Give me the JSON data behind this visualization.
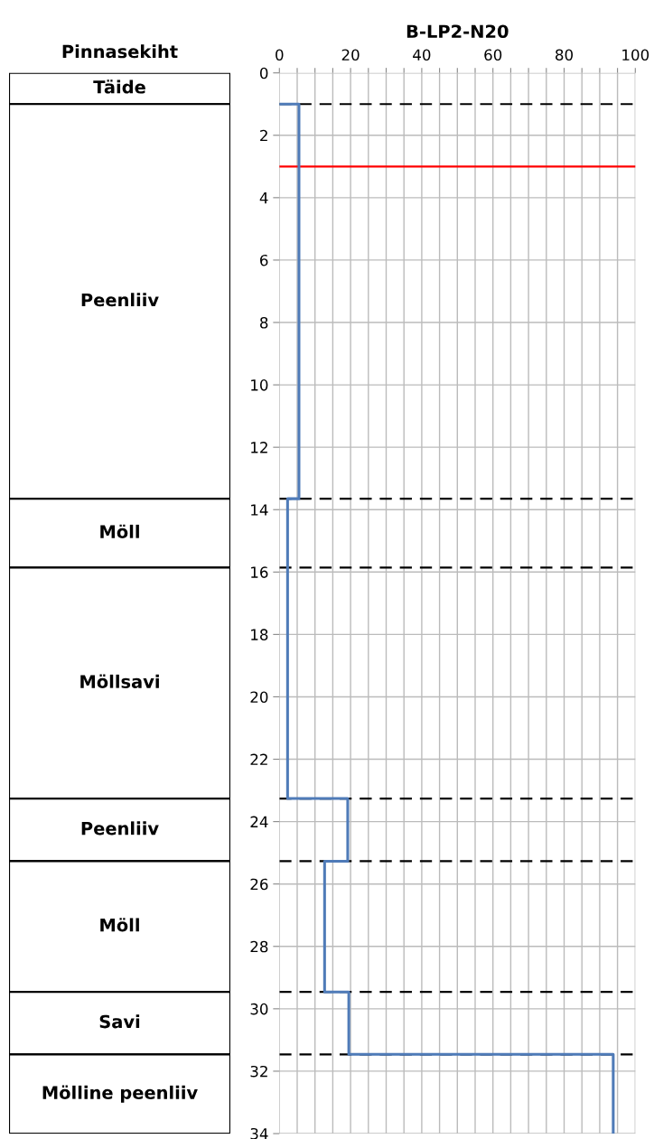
{
  "chart_data": [
    {
      "type": "bar",
      "title": "Pinnasekiht",
      "stacked": true,
      "categories": [
        null
      ],
      "ylim": [
        34,
        0
      ],
      "tick_labels": false,
      "series": [
        {
          "name": "Täide",
          "color": "#ffffff",
          "values": [
            1
          ]
        },
        {
          "name": "Peenliiv",
          "color": "#ffffff",
          "values": [
            12.65
          ]
        },
        {
          "name": "Möll",
          "color": "#ffffff",
          "values": [
            2.21
          ]
        },
        {
          "name": "Möllsavi",
          "color": "#ffffff",
          "values": [
            7.4
          ]
        },
        {
          "name": "Peenliiv",
          "color": "#ffffff",
          "values": [
            2.01
          ]
        },
        {
          "name": "Möll",
          "color": "#ffffff",
          "values": [
            4.19
          ]
        },
        {
          "name": "Savi",
          "color": "#ffffff",
          "values": [
            2.0
          ]
        },
        {
          "name": "Mölline peenliiv",
          "color": "#ffffff",
          "values": [
            2.54
          ]
        }
      ]
    },
    {
      "type": "step",
      "title": "B-LP2-N20",
      "orientation": "horizontal",
      "grid": true,
      "xlim": [
        0,
        100
      ],
      "xticks": [
        0,
        {
          "value": 5,
          "label": null
        },
        {
          "value": 10,
          "label": null
        },
        {
          "value": 15,
          "label": null
        },
        20,
        {
          "value": 25,
          "label": null
        },
        {
          "value": 30,
          "label": null
        },
        {
          "value": 35,
          "label": null
        },
        40,
        {
          "value": 45,
          "label": null
        },
        {
          "value": 50,
          "label": null
        },
        {
          "value": 55,
          "label": null
        },
        60,
        {
          "value": 65,
          "label": null
        },
        {
          "value": 70,
          "label": null
        },
        {
          "value": 75,
          "label": null
        },
        80,
        {
          "value": 85,
          "label": null
        },
        {
          "value": 90,
          "label": null
        },
        {
          "value": 95,
          "label": null
        },
        100
      ],
      "ylim": [
        34,
        0
      ],
      "yticks": [
        0,
        2,
        4,
        6,
        8,
        10,
        12,
        14,
        16,
        18,
        20,
        22,
        24,
        26,
        28,
        30,
        32,
        34
      ],
      "series": [
        {
          "color": "#4f7bb8",
          "x": [
            1,
            1,
            13.65,
            23.26,
            25.27,
            29.46,
            31.46,
            34
          ],
          "values": [
            0,
            5.5,
            2.3,
            19.2,
            12.7,
            19.5,
            93.8,
            93.8
          ]
        }
      ],
      "ref_lines": [
        {
          "axis": "y",
          "value": 3,
          "color": "#ff0000",
          "line_style": "solid"
        },
        {
          "axis": "y",
          "value": 1,
          "color": "#000000",
          "line_style": "dashed"
        },
        {
          "axis": "y",
          "value": 13.65,
          "color": "#000000",
          "line_style": "dashed"
        },
        {
          "axis": "y",
          "value": 15.86,
          "color": "#000000",
          "line_style": "dashed"
        },
        {
          "axis": "y",
          "value": 23.26,
          "color": "#000000",
          "line_style": "dashed"
        },
        {
          "axis": "y",
          "value": 25.27,
          "color": "#000000",
          "line_style": "dashed"
        },
        {
          "axis": "y",
          "value": 29.46,
          "color": "#000000",
          "line_style": "dashed"
        },
        {
          "axis": "y",
          "value": 31.46,
          "color": "#000000",
          "line_style": "dashed"
        }
      ]
    }
  ]
}
